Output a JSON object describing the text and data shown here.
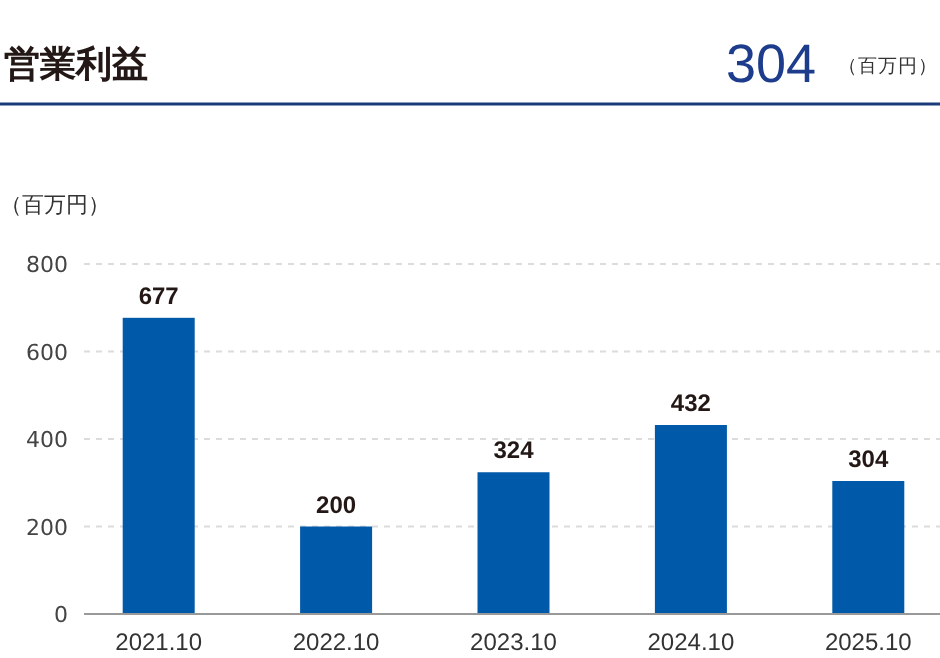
{
  "chart_data": {
    "type": "bar",
    "title": "営業利益",
    "annotations": [
      "304",
      "（百万円）"
    ],
    "ylabel": "（百万円）",
    "categories": [
      "2021.10",
      "2022.10",
      "2023.10",
      "2024.10",
      "2025.10"
    ],
    "values": [
      677,
      200,
      324,
      432,
      304
    ],
    "color": "#0059a9",
    "ylim": [
      0,
      800
    ],
    "yticks": [
      0,
      200,
      400,
      600,
      800
    ],
    "grid": "y",
    "data_labels": true
  }
}
